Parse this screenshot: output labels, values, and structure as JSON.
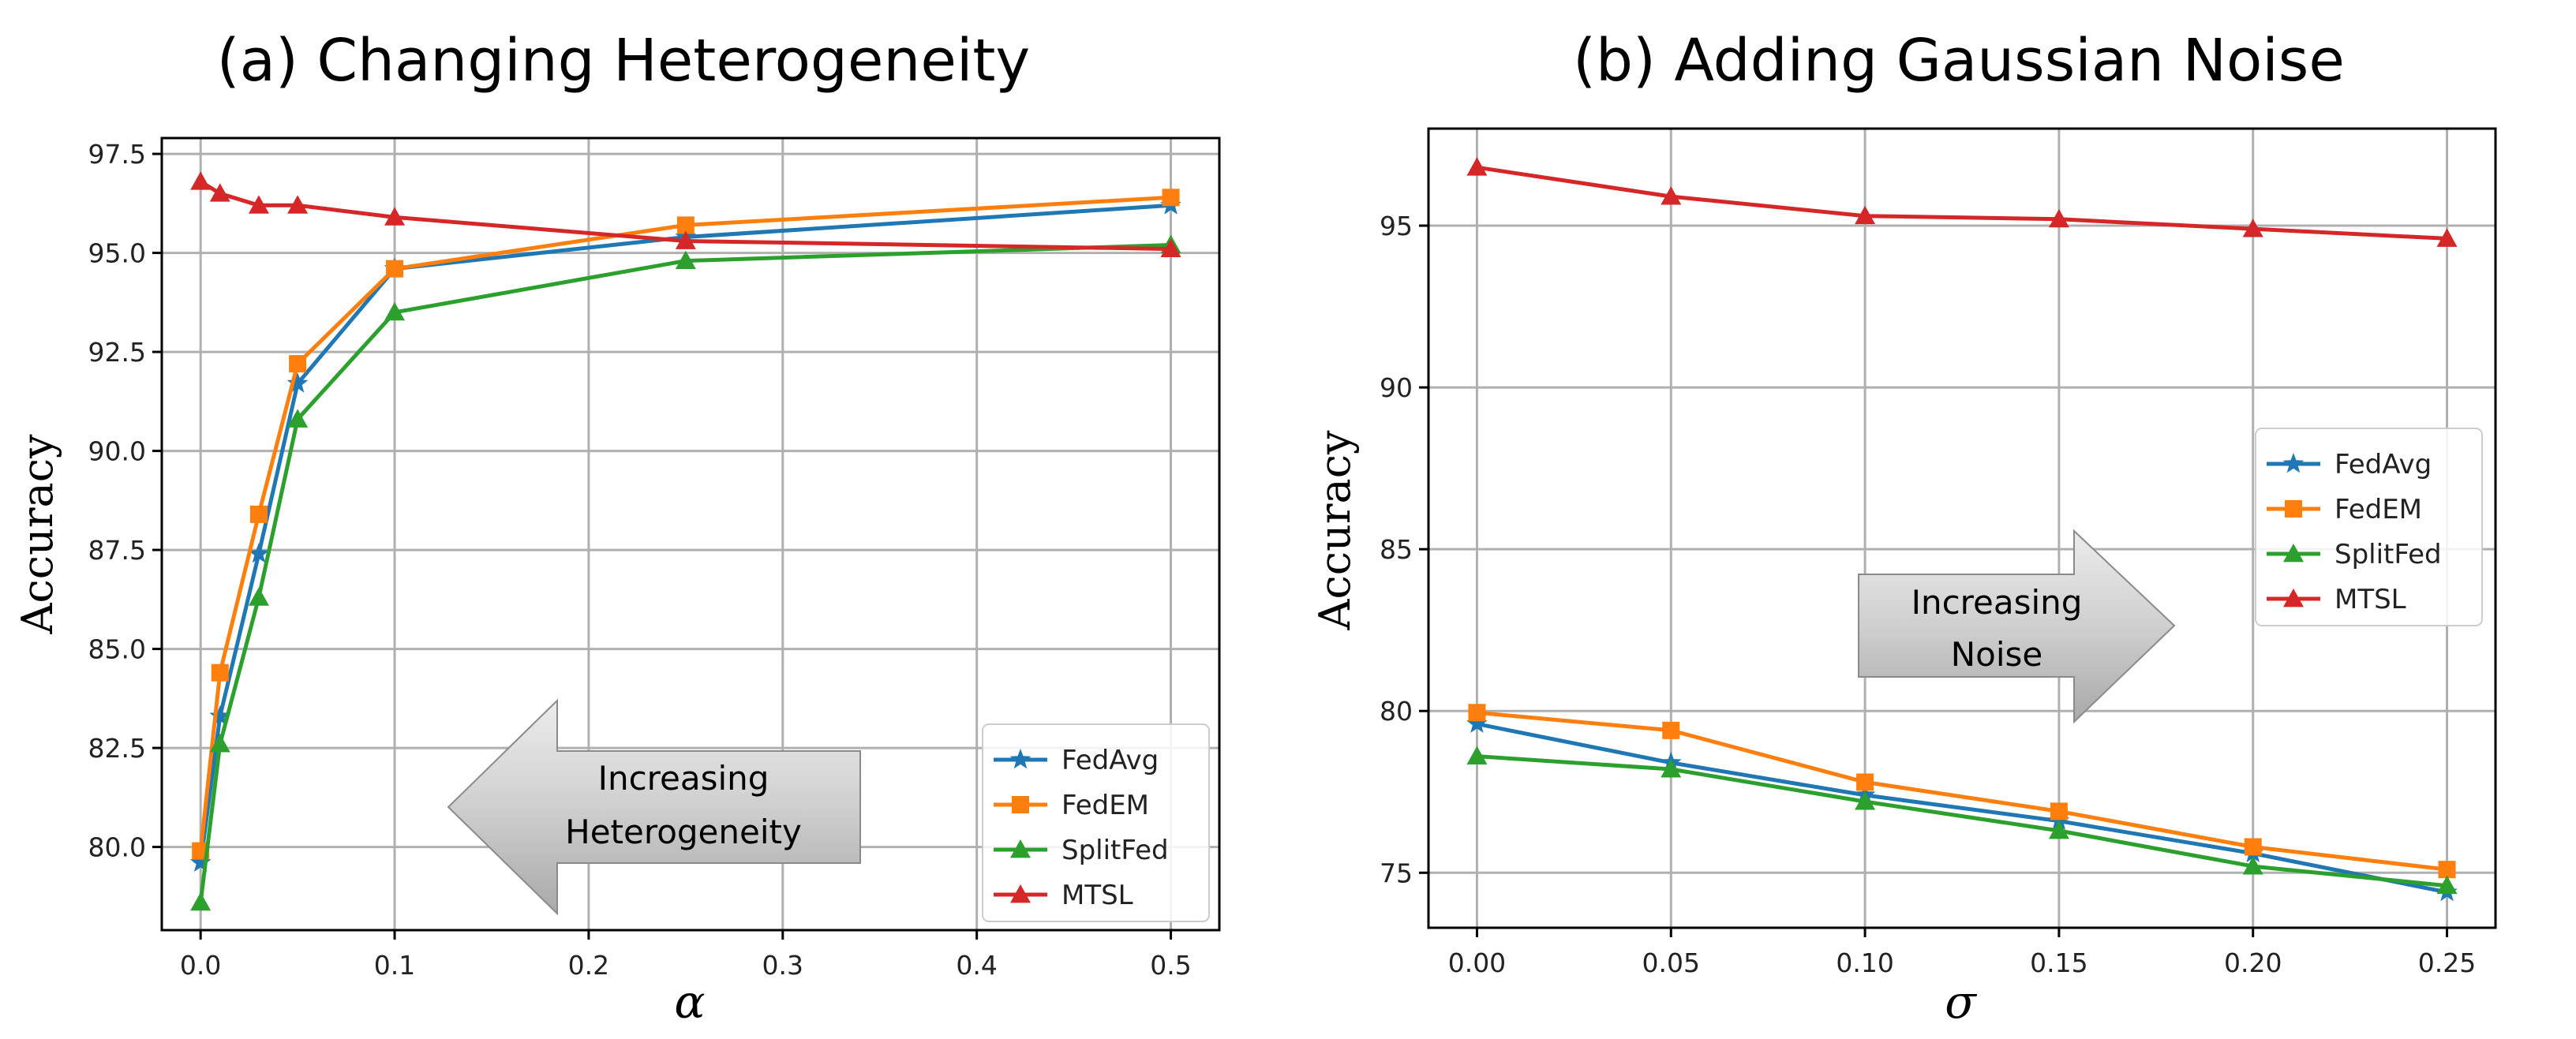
{
  "chart_data": [
    {
      "type": "line",
      "title": "(a) Changing Heterogeneity",
      "xlabel": "α",
      "ylabel": "Accuracy",
      "x": [
        0.0,
        0.01,
        0.03,
        0.05,
        0.1,
        0.25,
        0.5
      ],
      "xlim": [
        -0.02,
        0.525
      ],
      "ylim": [
        77.9,
        97.9
      ],
      "xticks": [
        "0.0",
        "0.1",
        "0.2",
        "0.3",
        "0.4",
        "0.5"
      ],
      "xtick_values": [
        0.0,
        0.1,
        0.2,
        0.3,
        0.4,
        0.5
      ],
      "yticks": [
        "80.0",
        "82.5",
        "85.0",
        "87.5",
        "90.0",
        "92.5",
        "95.0",
        "97.5"
      ],
      "ytick_values": [
        80.0,
        82.5,
        85.0,
        87.5,
        90.0,
        92.5,
        95.0,
        97.5
      ],
      "grid": true,
      "legend_position": "bottom-right",
      "series": [
        {
          "name": "FedAvg",
          "color": "#1f77b4",
          "marker": "star",
          "values": [
            79.6,
            83.3,
            87.4,
            91.7,
            94.6,
            95.4,
            96.2
          ]
        },
        {
          "name": "FedEM",
          "color": "#ff7f0e",
          "marker": "square",
          "values": [
            79.9,
            84.4,
            88.4,
            92.2,
            94.6,
            95.7,
            96.4
          ]
        },
        {
          "name": "SplitFed",
          "color": "#2ca02c",
          "marker": "triangle",
          "values": [
            78.6,
            82.6,
            86.3,
            90.8,
            93.5,
            94.8,
            95.2
          ]
        },
        {
          "name": "MTSL",
          "color": "#d62728",
          "marker": "triangle",
          "values": [
            96.8,
            96.5,
            96.2,
            96.2,
            95.9,
            95.3,
            95.1
          ]
        }
      ],
      "annotation": {
        "lines": [
          "Increasing",
          "Heterogeneity"
        ],
        "direction": "left"
      }
    },
    {
      "type": "line",
      "title": "(b) Adding Gaussian Noise",
      "xlabel": "σ",
      "ylabel": "Accuracy",
      "x": [
        0.0,
        0.05,
        0.1,
        0.15,
        0.2,
        0.25
      ],
      "xlim": [
        -0.0125,
        0.2625
      ],
      "ylim": [
        73.3,
        98.0
      ],
      "xticks": [
        "0.00",
        "0.05",
        "0.10",
        "0.15",
        "0.20",
        "0.25"
      ],
      "xtick_values": [
        0.0,
        0.05,
        0.1,
        0.15,
        0.2,
        0.25
      ],
      "yticks": [
        "75",
        "80",
        "85",
        "90",
        "95"
      ],
      "ytick_values": [
        75,
        80,
        85,
        90,
        95
      ],
      "grid": true,
      "legend_position": "center-right",
      "series": [
        {
          "name": "FedAvg",
          "color": "#1f77b4",
          "marker": "star",
          "values": [
            79.6,
            78.4,
            77.4,
            76.6,
            75.6,
            74.4
          ]
        },
        {
          "name": "FedEM",
          "color": "#ff7f0e",
          "marker": "square",
          "values": [
            79.95,
            79.4,
            77.8,
            76.9,
            75.8,
            75.1
          ]
        },
        {
          "name": "SplitFed",
          "color": "#2ca02c",
          "marker": "triangle",
          "values": [
            78.6,
            78.2,
            77.2,
            76.3,
            75.2,
            74.6
          ]
        },
        {
          "name": "MTSL",
          "color": "#d62728",
          "marker": "triangle",
          "values": [
            96.8,
            95.9,
            95.3,
            95.2,
            94.9,
            94.6
          ]
        }
      ],
      "annotation": {
        "lines": [
          "Increasing",
          "Noise"
        ],
        "direction": "right"
      }
    }
  ]
}
